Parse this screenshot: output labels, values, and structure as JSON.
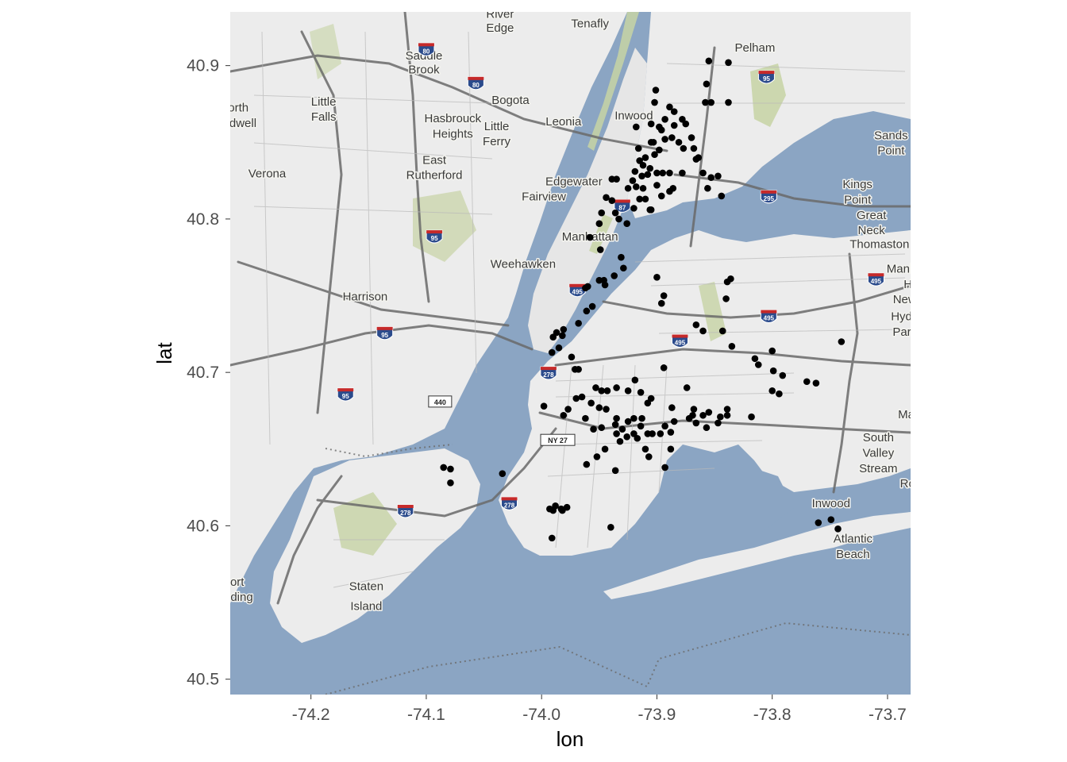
{
  "axes": {
    "xlabel": "lon",
    "ylabel": "lat",
    "xlim": [
      -74.27,
      -73.68
    ],
    "ylim": [
      40.49,
      40.935
    ],
    "x_ticks": [
      {
        "value": -74.2,
        "label": "-74.2"
      },
      {
        "value": -74.1,
        "label": "-74.1"
      },
      {
        "value": -74.0,
        "label": "-74.0"
      },
      {
        "value": -73.9,
        "label": "-73.9"
      },
      {
        "value": -73.8,
        "label": "-73.8"
      },
      {
        "value": -73.7,
        "label": "-73.7"
      }
    ],
    "y_ticks": [
      {
        "value": 40.5,
        "label": "40.5"
      },
      {
        "value": 40.6,
        "label": "40.6"
      },
      {
        "value": 40.7,
        "label": "40.7"
      },
      {
        "value": 40.8,
        "label": "40.8"
      },
      {
        "value": 40.9,
        "label": "40.9"
      }
    ]
  },
  "colors": {
    "water": "#8ba5c3",
    "land": "#ececec",
    "park": "#c7d3a5",
    "road": "#6a6a6a",
    "point": "#000000",
    "tick_text": "#4d4d4d"
  },
  "places": [
    {
      "name": "River",
      "lon": -74.036,
      "lat": 40.931
    },
    {
      "name": "Edge",
      "lon": -74.036,
      "lat": 40.922
    },
    {
      "name": "Tenafly",
      "lon": -73.958,
      "lat": 40.925
    },
    {
      "name": "Pelham",
      "lon": -73.815,
      "lat": 40.909
    },
    {
      "name": "Saddle",
      "lon": -74.102,
      "lat": 40.904
    },
    {
      "name": "Brook",
      "lon": -74.102,
      "lat": 40.895
    },
    {
      "name": "Bogota",
      "lon": -74.027,
      "lat": 40.875
    },
    {
      "name": "Little",
      "lon": -74.189,
      "lat": 40.874
    },
    {
      "name": "Falls",
      "lon": -74.189,
      "lat": 40.864
    },
    {
      "name": "orth",
      "lon": -74.263,
      "lat": 40.87
    },
    {
      "name": "dwell",
      "lon": -74.259,
      "lat": 40.86
    },
    {
      "name": "Hasbrouck",
      "lon": -74.077,
      "lat": 40.863
    },
    {
      "name": "Heights",
      "lon": -74.077,
      "lat": 40.853
    },
    {
      "name": "Little",
      "lon": -74.039,
      "lat": 40.858
    },
    {
      "name": "Ferry",
      "lon": -74.039,
      "lat": 40.848
    },
    {
      "name": "Leonia",
      "lon": -73.981,
      "lat": 40.861
    },
    {
      "name": "Inwood",
      "lon": -73.92,
      "lat": 40.865
    },
    {
      "name": "Sands",
      "lon": -73.697,
      "lat": 40.852
    },
    {
      "name": "Point",
      "lon": -73.697,
      "lat": 40.842
    },
    {
      "name": "East",
      "lon": -74.093,
      "lat": 40.836
    },
    {
      "name": "Rutherford",
      "lon": -74.093,
      "lat": 40.826
    },
    {
      "name": "Verona",
      "lon": -74.238,
      "lat": 40.827
    },
    {
      "name": "Edgewater",
      "lon": -73.972,
      "lat": 40.822
    },
    {
      "name": "Kings",
      "lon": -73.726,
      "lat": 40.82
    },
    {
      "name": "Point",
      "lon": -73.726,
      "lat": 40.81
    },
    {
      "name": "Fairview",
      "lon": -73.998,
      "lat": 40.812
    },
    {
      "name": "Great",
      "lon": -73.714,
      "lat": 40.8
    },
    {
      "name": "Neck",
      "lon": -73.714,
      "lat": 40.79
    },
    {
      "name": "Thomaston",
      "lon": -73.707,
      "lat": 40.781
    },
    {
      "name": "Manhattan",
      "lon": -73.958,
      "lat": 40.786
    },
    {
      "name": "Weehawken",
      "lon": -74.016,
      "lat": 40.768
    },
    {
      "name": "Manha",
      "lon": -73.685,
      "lat": 40.765
    },
    {
      "name": "Hil",
      "lon": -73.68,
      "lat": 40.755
    },
    {
      "name": "New",
      "lon": -73.685,
      "lat": 40.745
    },
    {
      "name": "Harrison",
      "lon": -74.153,
      "lat": 40.747
    },
    {
      "name": "Hyde",
      "lon": -73.685,
      "lat": 40.734
    },
    {
      "name": "Park",
      "lon": -73.685,
      "lat": 40.724
    },
    {
      "name": "Malv",
      "lon": -73.68,
      "lat": 40.67
    },
    {
      "name": "South",
      "lon": -73.708,
      "lat": 40.655
    },
    {
      "name": "Valley",
      "lon": -73.708,
      "lat": 40.645
    },
    {
      "name": "Stream",
      "lon": -73.708,
      "lat": 40.635
    },
    {
      "name": "Roc",
      "lon": -73.68,
      "lat": 40.625
    },
    {
      "name": "Inwood",
      "lon": -73.749,
      "lat": 40.612
    },
    {
      "name": "Atlantic",
      "lon": -73.73,
      "lat": 40.589
    },
    {
      "name": "Beach",
      "lon": -73.73,
      "lat": 40.579
    },
    {
      "name": "ort",
      "lon": -74.264,
      "lat": 40.561
    },
    {
      "name": "ding",
      "lon": -74.26,
      "lat": 40.551
    },
    {
      "name": "Staten",
      "lon": -74.152,
      "lat": 40.558
    },
    {
      "name": "Island",
      "lon": -74.152,
      "lat": 40.545
    }
  ],
  "shields": [
    {
      "route": "80",
      "type": "interstate",
      "lon": -74.1,
      "lat": 40.91
    },
    {
      "route": "80",
      "type": "interstate",
      "lon": -74.057,
      "lat": 40.888
    },
    {
      "route": "95",
      "type": "interstate",
      "lon": -73.805,
      "lat": 40.892
    },
    {
      "route": "295",
      "type": "interstate",
      "lon": -73.803,
      "lat": 40.814
    },
    {
      "route": "87",
      "type": "interstate",
      "lon": -73.93,
      "lat": 40.808
    },
    {
      "route": "95",
      "type": "interstate",
      "lon": -74.093,
      "lat": 40.788
    },
    {
      "route": "495",
      "type": "interstate",
      "lon": -73.71,
      "lat": 40.76
    },
    {
      "route": "495",
      "type": "interstate",
      "lon": -73.969,
      "lat": 40.753
    },
    {
      "route": "495",
      "type": "interstate",
      "lon": -73.803,
      "lat": 40.736
    },
    {
      "route": "95",
      "type": "interstate",
      "lon": -74.136,
      "lat": 40.725
    },
    {
      "route": "495",
      "type": "interstate",
      "lon": -73.88,
      "lat": 40.72
    },
    {
      "route": "278",
      "type": "interstate",
      "lon": -73.994,
      "lat": 40.699
    },
    {
      "route": "95",
      "type": "interstate",
      "lon": -74.17,
      "lat": 40.685
    },
    {
      "route": "440",
      "type": "state",
      "lon": -74.088,
      "lat": 40.681
    },
    {
      "route": "NY 27",
      "type": "state",
      "lon": -73.986,
      "lat": 40.656
    },
    {
      "route": "278",
      "type": "interstate",
      "lon": -74.118,
      "lat": 40.609
    },
    {
      "route": "278",
      "type": "interstate",
      "lon": -74.028,
      "lat": 40.614
    }
  ],
  "points": [
    [
      -73.838,
      40.902
    ],
    [
      -73.855,
      40.903
    ],
    [
      -73.857,
      40.888
    ],
    [
      -73.901,
      40.884
    ],
    [
      -73.838,
      40.876
    ],
    [
      -73.858,
      40.876
    ],
    [
      -73.853,
      40.876
    ],
    [
      -73.918,
      40.86
    ],
    [
      -73.905,
      40.862
    ],
    [
      -73.902,
      40.876
    ],
    [
      -73.889,
      40.873
    ],
    [
      -73.885,
      40.87
    ],
    [
      -73.878,
      40.865
    ],
    [
      -73.875,
      40.862
    ],
    [
      -73.896,
      40.858
    ],
    [
      -73.898,
      40.86
    ],
    [
      -73.893,
      40.865
    ],
    [
      -73.885,
      40.861
    ],
    [
      -73.87,
      40.853
    ],
    [
      -73.868,
      40.846
    ],
    [
      -73.877,
      40.846
    ],
    [
      -73.881,
      40.85
    ],
    [
      -73.887,
      40.853
    ],
    [
      -73.893,
      40.852
    ],
    [
      -73.898,
      40.845
    ],
    [
      -73.903,
      40.85
    ],
    [
      -73.905,
      40.85
    ],
    [
      -73.902,
      40.842
    ],
    [
      -73.91,
      40.84
    ],
    [
      -73.916,
      40.846
    ],
    [
      -73.915,
      40.838
    ],
    [
      -73.912,
      40.835
    ],
    [
      -73.906,
      40.833
    ],
    [
      -73.908,
      40.829
    ],
    [
      -73.913,
      40.828
    ],
    [
      -73.919,
      40.831
    ],
    [
      -73.921,
      40.825
    ],
    [
      -73.925,
      40.82
    ],
    [
      -73.918,
      40.821
    ],
    [
      -73.912,
      40.82
    ],
    [
      -73.9,
      40.83
    ],
    [
      -73.895,
      40.83
    ],
    [
      -73.889,
      40.83
    ],
    [
      -73.9,
      40.822
    ],
    [
      -73.896,
      40.815
    ],
    [
      -73.889,
      40.818
    ],
    [
      -73.886,
      40.82
    ],
    [
      -73.878,
      40.83
    ],
    [
      -73.866,
      40.839
    ],
    [
      -73.864,
      40.84
    ],
    [
      -73.86,
      40.83
    ],
    [
      -73.853,
      40.827
    ],
    [
      -73.844,
      40.815
    ],
    [
      -73.847,
      40.828
    ],
    [
      -73.856,
      40.82
    ],
    [
      -73.935,
      40.826
    ],
    [
      -73.939,
      40.826
    ],
    [
      -73.944,
      40.814
    ],
    [
      -73.939,
      40.812
    ],
    [
      -73.948,
      40.804
    ],
    [
      -73.936,
      40.804
    ],
    [
      -73.933,
      40.8
    ],
    [
      -73.926,
      40.797
    ],
    [
      -73.92,
      40.807
    ],
    [
      -73.915,
      40.813
    ],
    [
      -73.91,
      40.813
    ],
    [
      -73.905,
      40.806
    ],
    [
      -73.906,
      40.806
    ],
    [
      -73.95,
      40.797
    ],
    [
      -73.958,
      40.788
    ],
    [
      -73.949,
      40.78
    ],
    [
      -73.931,
      40.775
    ],
    [
      -73.937,
      40.763
    ],
    [
      -73.929,
      40.768
    ],
    [
      -73.95,
      40.76
    ],
    [
      -73.946,
      40.76
    ],
    [
      -73.945,
      40.757
    ],
    [
      -73.961,
      40.74
    ],
    [
      -73.956,
      40.743
    ],
    [
      -73.96,
      40.756
    ],
    [
      -73.962,
      40.755
    ],
    [
      -73.968,
      40.732
    ],
    [
      -73.981,
      40.728
    ],
    [
      -73.987,
      40.726
    ],
    [
      -73.982,
      40.724
    ],
    [
      -73.99,
      40.723
    ],
    [
      -73.985,
      40.716
    ],
    [
      -73.991,
      40.713
    ],
    [
      -73.974,
      40.71
    ],
    [
      -73.971,
      40.702
    ],
    [
      -73.968,
      40.702
    ],
    [
      -73.9,
      40.762
    ],
    [
      -73.894,
      40.75
    ],
    [
      -73.896,
      40.745
    ],
    [
      -73.866,
      40.731
    ],
    [
      -73.86,
      40.727
    ],
    [
      -73.839,
      40.759
    ],
    [
      -73.836,
      40.761
    ],
    [
      -73.84,
      40.748
    ],
    [
      -73.843,
      40.727
    ],
    [
      -73.835,
      40.717
    ],
    [
      -73.815,
      40.709
    ],
    [
      -73.8,
      40.714
    ],
    [
      -73.812,
      40.705
    ],
    [
      -73.791,
      40.698
    ],
    [
      -73.799,
      40.701
    ],
    [
      -73.8,
      40.688
    ],
    [
      -73.794,
      40.686
    ],
    [
      -73.77,
      40.694
    ],
    [
      -73.762,
      40.693
    ],
    [
      -73.74,
      40.72
    ],
    [
      -73.818,
      40.671
    ],
    [
      -73.839,
      40.672
    ],
    [
      -73.839,
      40.676
    ],
    [
      -73.855,
      40.674
    ],
    [
      -73.868,
      40.676
    ],
    [
      -73.869,
      40.672
    ],
    [
      -73.874,
      40.69
    ],
    [
      -73.894,
      40.703
    ],
    [
      -73.887,
      40.677
    ],
    [
      -73.905,
      40.683
    ],
    [
      -73.908,
      40.68
    ],
    [
      -73.914,
      40.687
    ],
    [
      -73.919,
      40.695
    ],
    [
      -73.925,
      40.688
    ],
    [
      -73.935,
      40.69
    ],
    [
      -73.943,
      40.688
    ],
    [
      -73.948,
      40.688
    ],
    [
      -73.953,
      40.69
    ],
    [
      -73.957,
      40.68
    ],
    [
      -73.965,
      40.684
    ],
    [
      -73.97,
      40.683
    ],
    [
      -73.977,
      40.676
    ],
    [
      -73.981,
      40.672
    ],
    [
      -73.998,
      40.678
    ],
    [
      -73.962,
      40.67
    ],
    [
      -73.955,
      40.663
    ],
    [
      -73.948,
      40.664
    ],
    [
      -73.95,
      40.677
    ],
    [
      -73.944,
      40.676
    ],
    [
      -73.936,
      40.666
    ],
    [
      -73.935,
      40.67
    ],
    [
      -73.93,
      40.663
    ],
    [
      -73.925,
      40.668
    ],
    [
      -73.92,
      40.67
    ],
    [
      -73.914,
      40.665
    ],
    [
      -73.913,
      40.67
    ],
    [
      -73.917,
      40.657
    ],
    [
      -73.92,
      40.66
    ],
    [
      -73.926,
      40.658
    ],
    [
      -73.935,
      40.66
    ],
    [
      -73.932,
      40.655
    ],
    [
      -73.945,
      40.65
    ],
    [
      -73.952,
      40.645
    ],
    [
      -73.961,
      40.64
    ],
    [
      -73.908,
      40.66
    ],
    [
      -73.904,
      40.66
    ],
    [
      -73.897,
      40.66
    ],
    [
      -73.893,
      40.665
    ],
    [
      -73.885,
      40.668
    ],
    [
      -73.888,
      40.661
    ],
    [
      -73.91,
      40.65
    ],
    [
      -73.907,
      40.645
    ],
    [
      -73.893,
      40.638
    ],
    [
      -73.888,
      40.65
    ],
    [
      -73.936,
      40.636
    ],
    [
      -73.872,
      40.67
    ],
    [
      -73.86,
      40.672
    ],
    [
      -73.866,
      40.667
    ],
    [
      -73.857,
      40.664
    ],
    [
      -73.847,
      40.667
    ],
    [
      -73.845,
      40.671
    ],
    [
      -74.079,
      40.637
    ],
    [
      -74.085,
      40.638
    ],
    [
      -74.079,
      40.628
    ],
    [
      -74.034,
      40.634
    ],
    [
      -73.988,
      40.613
    ],
    [
      -73.983,
      40.611
    ],
    [
      -73.982,
      40.61
    ],
    [
      -73.978,
      40.612
    ],
    [
      -73.993,
      40.611
    ],
    [
      -73.99,
      40.61
    ],
    [
      -73.991,
      40.592
    ],
    [
      -73.94,
      40.599
    ],
    [
      -73.76,
      40.602
    ],
    [
      -73.749,
      40.604
    ],
    [
      -73.743,
      40.598
    ]
  ]
}
